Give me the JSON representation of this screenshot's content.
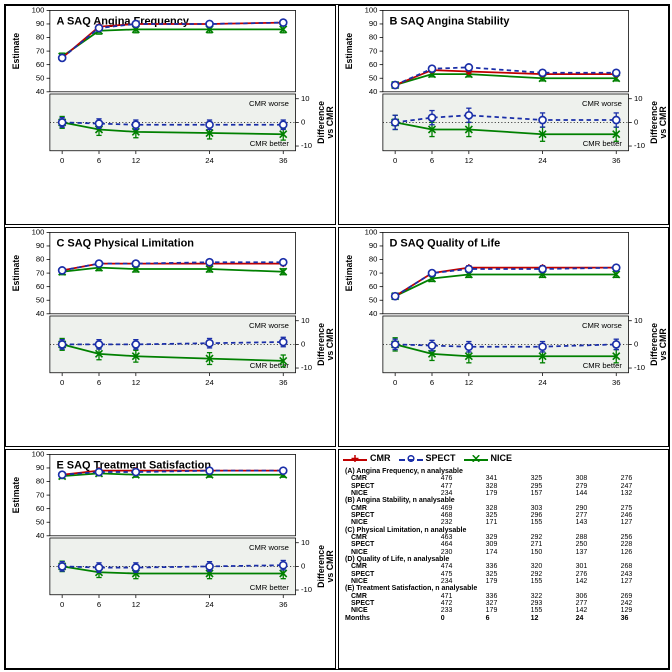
{
  "global": {
    "series": {
      "cmr": {
        "label": "CMR",
        "color": "#c00000",
        "dash": "",
        "marker": "plus"
      },
      "spect": {
        "label": "SPECT",
        "color": "#1a2ea8",
        "dash": "4,3",
        "marker": "circle"
      },
      "nice": {
        "label": "NICE",
        "color": "#008000",
        "dash": "",
        "marker": "x"
      }
    },
    "x_ticks": [
      0,
      6,
      12,
      24,
      36
    ],
    "x_label": "Months",
    "y_top_label": "Estimate",
    "y_bot_label": "Difference\nvs CMR",
    "cmr_worse": "CMR worse",
    "cmr_better": "CMR better",
    "y_top_range": [
      40,
      100
    ],
    "y_top_ticks": [
      40,
      50,
      60,
      70,
      80,
      90,
      100
    ],
    "y_bot_range": [
      -12,
      12
    ],
    "y_bot_ticks": [
      -10,
      0,
      10
    ],
    "title_fontsize": 10,
    "axis_fontsize": 8,
    "tick_fontsize": 7,
    "annot_fontsize": 7,
    "shade_color": "#eef1ed",
    "grid_dash": "1,2",
    "err_halfwidth": 1.2
  },
  "panels": [
    {
      "id": "A",
      "title": "A  SAQ Angina Frequency",
      "top": {
        "cmr": {
          "y": [
            65,
            88,
            90,
            90,
            91
          ],
          "err": [
            1.5,
            1.5,
            1.5,
            1.5,
            1.5
          ]
        },
        "spect": {
          "y": [
            65,
            87,
            90,
            90,
            91
          ],
          "err": [
            1.5,
            1.5,
            1.5,
            1.5,
            1.5
          ]
        },
        "nice": {
          "y": [
            66,
            85,
            86,
            86,
            86
          ],
          "err": [
            2.5,
            2.5,
            2.5,
            2.5,
            2.5
          ]
        }
      },
      "bot": {
        "spect": {
          "y": [
            0,
            -0.5,
            -1,
            -1,
            -1
          ],
          "err": [
            2,
            2,
            2,
            2,
            2
          ]
        },
        "nice": {
          "y": [
            0,
            -3,
            -4,
            -4.5,
            -5
          ],
          "err": [
            2.5,
            2.5,
            2.5,
            2.5,
            2.5
          ]
        }
      }
    },
    {
      "id": "B",
      "title": "B  SAQ Angina Stability",
      "top": {
        "cmr": {
          "y": [
            45,
            56,
            55,
            53,
            53
          ],
          "err": [
            1.5,
            1.5,
            1.5,
            1.5,
            1.5
          ]
        },
        "spect": {
          "y": [
            45,
            57,
            58,
            54,
            54
          ],
          "err": [
            1.8,
            1.8,
            1.8,
            1.8,
            1.8
          ]
        },
        "nice": {
          "y": [
            45,
            53,
            53,
            50,
            50
          ],
          "err": [
            2.2,
            2,
            2,
            2,
            2
          ]
        }
      },
      "bot": {
        "spect": {
          "y": [
            0,
            2,
            3,
            1,
            1
          ],
          "err": [
            3,
            3,
            3,
            3,
            3
          ]
        },
        "nice": {
          "y": [
            0,
            -3,
            -3,
            -5,
            -5
          ],
          "err": [
            3,
            3,
            3,
            3,
            3
          ]
        }
      }
    },
    {
      "id": "C",
      "title": "C  SAQ Physical Limitation",
      "top": {
        "cmr": {
          "y": [
            72,
            77,
            77,
            77,
            77
          ],
          "err": [
            1.5,
            1.5,
            1.5,
            1.5,
            1.5
          ]
        },
        "spect": {
          "y": [
            72,
            77,
            77,
            78,
            78
          ],
          "err": [
            1.8,
            1.8,
            1.8,
            1.8,
            1.8
          ]
        },
        "nice": {
          "y": [
            71,
            74,
            73,
            73,
            71
          ],
          "err": [
            2.2,
            2.2,
            2.2,
            2.2,
            2.2
          ]
        }
      },
      "bot": {
        "spect": {
          "y": [
            0,
            0,
            0,
            0.5,
            1
          ],
          "err": [
            2,
            2,
            2,
            2,
            2
          ]
        },
        "nice": {
          "y": [
            0,
            -4,
            -5,
            -6,
            -7
          ],
          "err": [
            2.5,
            2.5,
            2.5,
            2.5,
            2.5
          ]
        }
      }
    },
    {
      "id": "D",
      "title": "D  SAQ Quality of Life",
      "top": {
        "cmr": {
          "y": [
            53,
            70,
            74,
            74,
            74
          ],
          "err": [
            1.5,
            1.5,
            1.5,
            1.5,
            1.5
          ]
        },
        "spect": {
          "y": [
            53,
            70,
            73,
            73,
            74
          ],
          "err": [
            1.8,
            1.8,
            1.8,
            1.8,
            1.8
          ]
        },
        "nice": {
          "y": [
            53,
            66,
            69,
            69,
            69
          ],
          "err": [
            2.2,
            2.2,
            2.2,
            2.2,
            2.2
          ]
        }
      },
      "bot": {
        "spect": {
          "y": [
            0,
            -0.5,
            -1,
            -1,
            0
          ],
          "err": [
            2.2,
            2.2,
            2.2,
            2.2,
            2.2
          ]
        },
        "nice": {
          "y": [
            0,
            -4,
            -5,
            -5,
            -5
          ],
          "err": [
            2.8,
            2.8,
            2.8,
            2.8,
            2.8
          ]
        }
      }
    },
    {
      "id": "E",
      "title": "E  SAQ Treatment Satisfaction",
      "top": {
        "cmr": {
          "y": [
            85,
            88,
            88,
            88,
            88
          ],
          "err": [
            1.2,
            1.2,
            1.2,
            1.2,
            1.2
          ]
        },
        "spect": {
          "y": [
            85,
            87,
            87,
            88,
            88
          ],
          "err": [
            1.5,
            1.5,
            1.5,
            1.5,
            1.5
          ]
        },
        "nice": {
          "y": [
            84,
            86,
            85,
            85,
            85
          ],
          "err": [
            1.8,
            1.8,
            1.8,
            1.8,
            1.8
          ]
        }
      },
      "bot": {
        "spect": {
          "y": [
            0,
            -0.5,
            -0.5,
            0,
            0.5
          ],
          "err": [
            2,
            2,
            2,
            2,
            2
          ]
        },
        "nice": {
          "y": [
            0,
            -2.5,
            -3,
            -3,
            -3
          ],
          "err": [
            2.2,
            2.2,
            2.2,
            2.2,
            2.2
          ]
        }
      }
    }
  ],
  "table": {
    "months": [
      "0",
      "6",
      "12",
      "24",
      "36"
    ],
    "groups": [
      {
        "title": "(A) Angina Frequency, n analysable",
        "rows": [
          [
            "CMR",
            "476",
            "341",
            "325",
            "308",
            "276"
          ],
          [
            "SPECT",
            "477",
            "328",
            "295",
            "279",
            "247"
          ],
          [
            "NICE",
            "234",
            "179",
            "157",
            "144",
            "132"
          ]
        ]
      },
      {
        "title": "(B) Angina Stability, n analysable",
        "rows": [
          [
            "CMR",
            "469",
            "328",
            "303",
            "290",
            "275"
          ],
          [
            "SPECT",
            "468",
            "325",
            "296",
            "277",
            "246"
          ],
          [
            "NICE",
            "232",
            "171",
            "155",
            "143",
            "127"
          ]
        ]
      },
      {
        "title": "(C) Physical Limitation, n analysable",
        "rows": [
          [
            "CMR",
            "463",
            "329",
            "292",
            "288",
            "256"
          ],
          [
            "SPECT",
            "464",
            "309",
            "271",
            "250",
            "228"
          ],
          [
            "NICE",
            "230",
            "174",
            "150",
            "137",
            "126"
          ]
        ]
      },
      {
        "title": "(D) Quality of Life, n analysable",
        "rows": [
          [
            "CMR",
            "474",
            "336",
            "320",
            "301",
            "268"
          ],
          [
            "SPECT",
            "475",
            "325",
            "292",
            "276",
            "243"
          ],
          [
            "NICE",
            "234",
            "179",
            "155",
            "142",
            "127"
          ]
        ]
      },
      {
        "title": "(E) Treatment Satisfaction, n analysable",
        "rows": [
          [
            "CMR",
            "471",
            "336",
            "322",
            "306",
            "269"
          ],
          [
            "SPECT",
            "472",
            "327",
            "293",
            "277",
            "242"
          ],
          [
            "NICE",
            "233",
            "179",
            "155",
            "142",
            "129"
          ]
        ]
      }
    ]
  }
}
